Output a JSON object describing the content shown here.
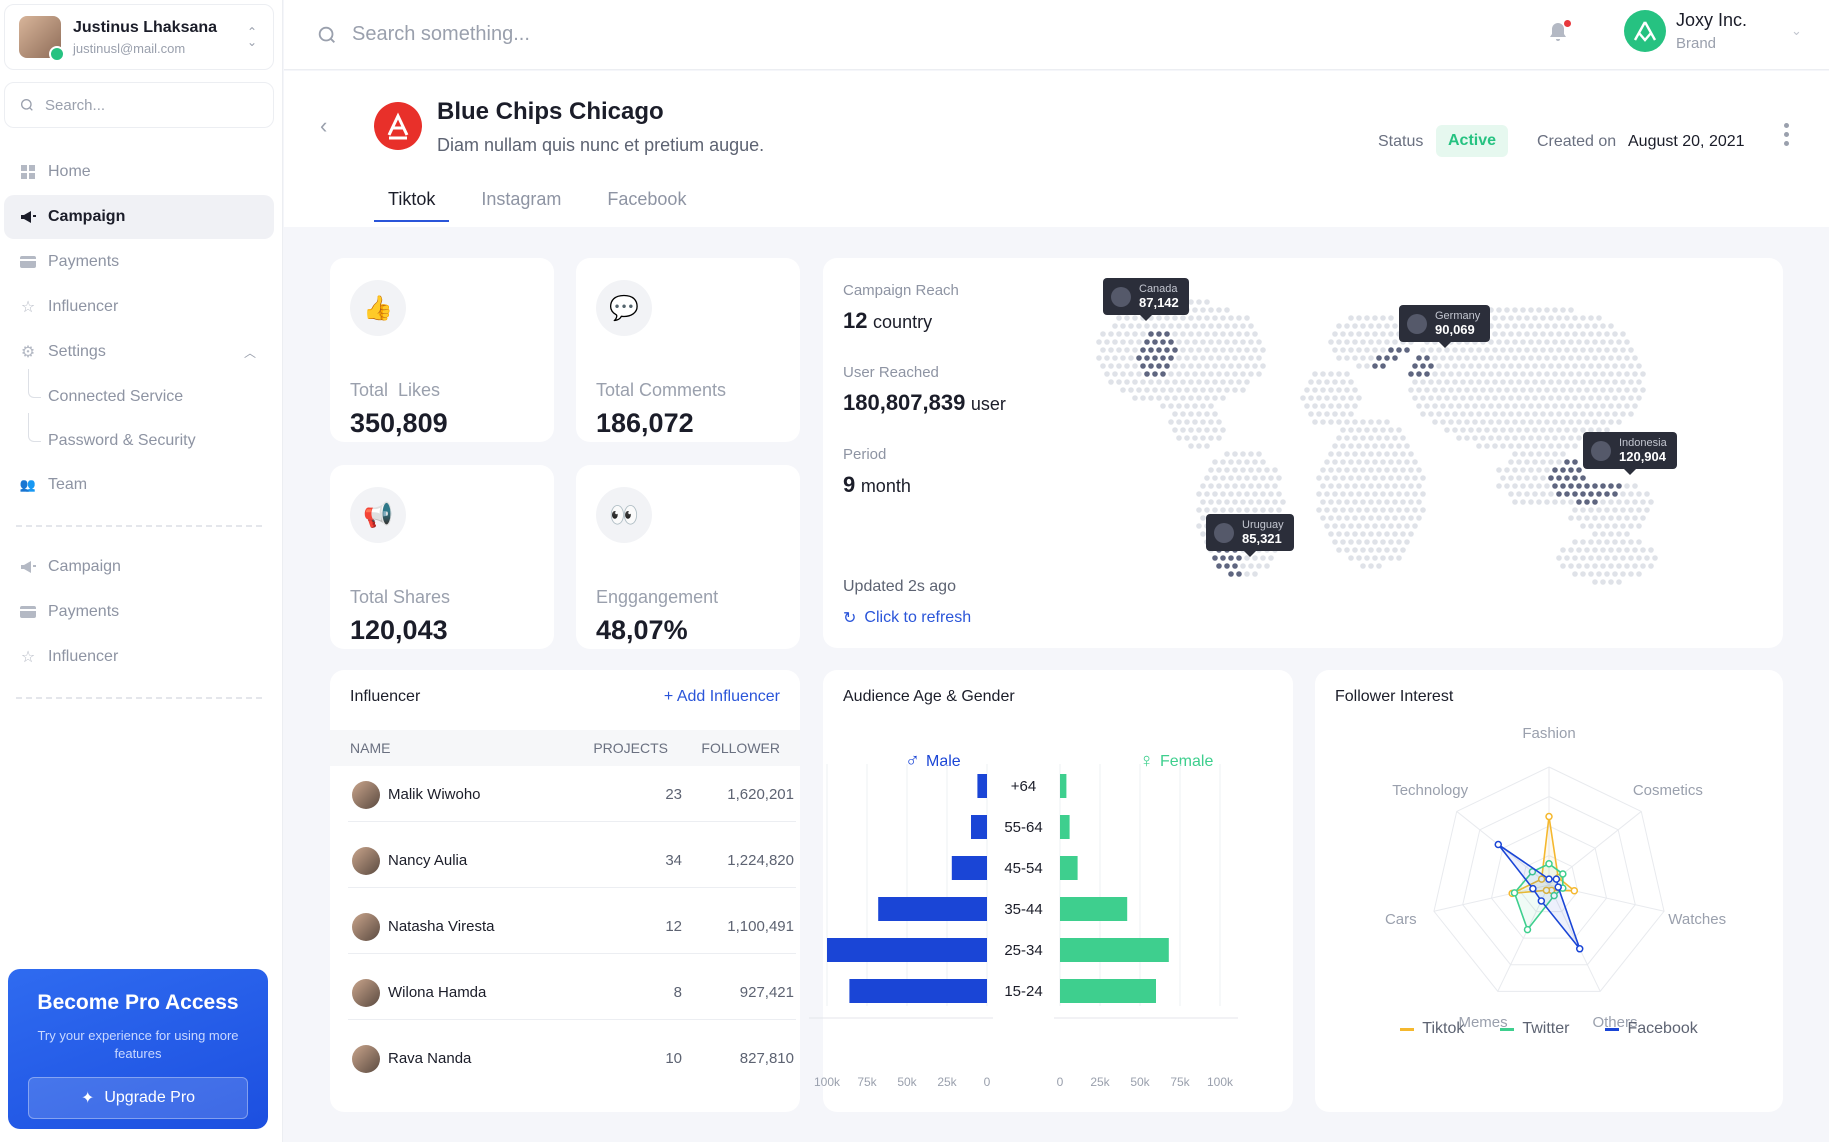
{
  "user": {
    "name": "Justinus Lhaksana",
    "email": "justinusl@mail.com"
  },
  "sidebar": {
    "search_placeholder": "Search...",
    "nav": [
      {
        "label": "Home"
      },
      {
        "label": "Campaign"
      },
      {
        "label": "Payments"
      },
      {
        "label": "Influencer"
      },
      {
        "label": "Settings"
      }
    ],
    "settings_sub": [
      {
        "label": "Connected Service"
      },
      {
        "label": "Password & Security"
      }
    ],
    "team": "Team",
    "nav2": [
      {
        "label": "Campaign"
      },
      {
        "label": "Payments"
      },
      {
        "label": "Influencer"
      }
    ],
    "pro": {
      "title": "Become Pro Access",
      "subtitle": "Try your experience for using more features",
      "button": "Upgrade Pro"
    }
  },
  "topbar": {
    "search_placeholder": "Search something...",
    "org_name": "Joxy Inc.",
    "org_sub": "Brand"
  },
  "campaign": {
    "title": "Blue Chips Chicago",
    "subtitle": "Diam nullam quis nunc et pretium augue.",
    "status_label": "Status",
    "status": "Active",
    "created_label": "Created on",
    "created": "August 20, 2021",
    "tabs": [
      "Tiktok",
      "Instagram",
      "Facebook"
    ]
  },
  "stats": [
    {
      "label": "Total  Likes",
      "value": "350,809",
      "icon": "thumbs-up-icon",
      "glyph": "👍"
    },
    {
      "label": "Total Comments",
      "value": "186,072",
      "icon": "comment-icon",
      "glyph": "💬"
    },
    {
      "label": "Total Shares",
      "value": "120,043",
      "icon": "megaphone-icon",
      "glyph": "📢"
    },
    {
      "label": "Enggangement",
      "value": "48,07%",
      "icon": "eyes-icon",
      "glyph": "👀"
    }
  ],
  "reach": {
    "reach_label": "Campaign Reach",
    "reach_num": "12",
    "reach_unit": "country",
    "users_label": "User Reached",
    "users_num": "180,807,839",
    "users_unit": "user",
    "period_label": "Period",
    "period_num": "9",
    "period_unit": "month",
    "updated": "Updated 2s ago",
    "refresh": "Click to refresh",
    "pins": [
      {
        "country": "Canada",
        "value": "87,142"
      },
      {
        "country": "Germany",
        "value": "90,069"
      },
      {
        "country": "Indonesia",
        "value": "120,904"
      },
      {
        "country": "Uruguay",
        "value": "85,321"
      }
    ]
  },
  "influencer": {
    "title": "Influencer",
    "add": "+ Add Influencer",
    "headers": [
      "NAME",
      "PROJECTS",
      "FOLLOWER"
    ],
    "rows": [
      {
        "name": "Malik Wiwoho",
        "projects": "23",
        "follower": "1,620,201"
      },
      {
        "name": "Nancy Aulia",
        "projects": "34",
        "follower": "1,224,820"
      },
      {
        "name": "Natasha Viresta",
        "projects": "12",
        "follower": "1,100,491"
      },
      {
        "name": "Wilona Hamda",
        "projects": "8",
        "follower": "927,421"
      },
      {
        "name": "Rava Nanda",
        "projects": "10",
        "follower": "827,810"
      }
    ]
  },
  "chart_data": [
    {
      "type": "bar",
      "title": "Audience Age & Gender",
      "categories": [
        "+64",
        "55-64",
        "45-54",
        "35-44",
        "25-34",
        "15-24"
      ],
      "series": [
        {
          "name": "Male",
          "values": [
            6,
            10,
            22,
            68,
            100,
            86
          ],
          "color": "#1a45d6"
        },
        {
          "name": "Female",
          "values": [
            4,
            6,
            11,
            42,
            68,
            60
          ],
          "color": "#3ecf8e"
        }
      ],
      "male_ticks": [
        "100k",
        "75k",
        "50k",
        "25k",
        "0"
      ],
      "female_ticks": [
        "0",
        "25k",
        "50k",
        "75k",
        "100k"
      ],
      "xlim": [
        0,
        100
      ]
    },
    {
      "type": "radar",
      "title": "Follower Interest",
      "axes": [
        "Fashion",
        "Cosmetics",
        "Watches",
        "Others",
        "Memes",
        "Cars",
        "Technology"
      ],
      "max": 100,
      "series": [
        {
          "name": "Tiktok",
          "values": [
            58,
            10,
            22,
            5,
            5,
            32,
            8
          ],
          "color": "#f5b82e"
        },
        {
          "name": "Twitter",
          "values": [
            18,
            15,
            12,
            10,
            42,
            30,
            18
          ],
          "color": "#3ecf8e"
        },
        {
          "name": "Facebook",
          "values": [
            5,
            8,
            8,
            60,
            15,
            14,
            55
          ],
          "color": "#1a45d6"
        }
      ]
    }
  ],
  "colors": {
    "accent": "#2a55d9",
    "success": "#26c281",
    "brand_red": "#e8302a"
  }
}
